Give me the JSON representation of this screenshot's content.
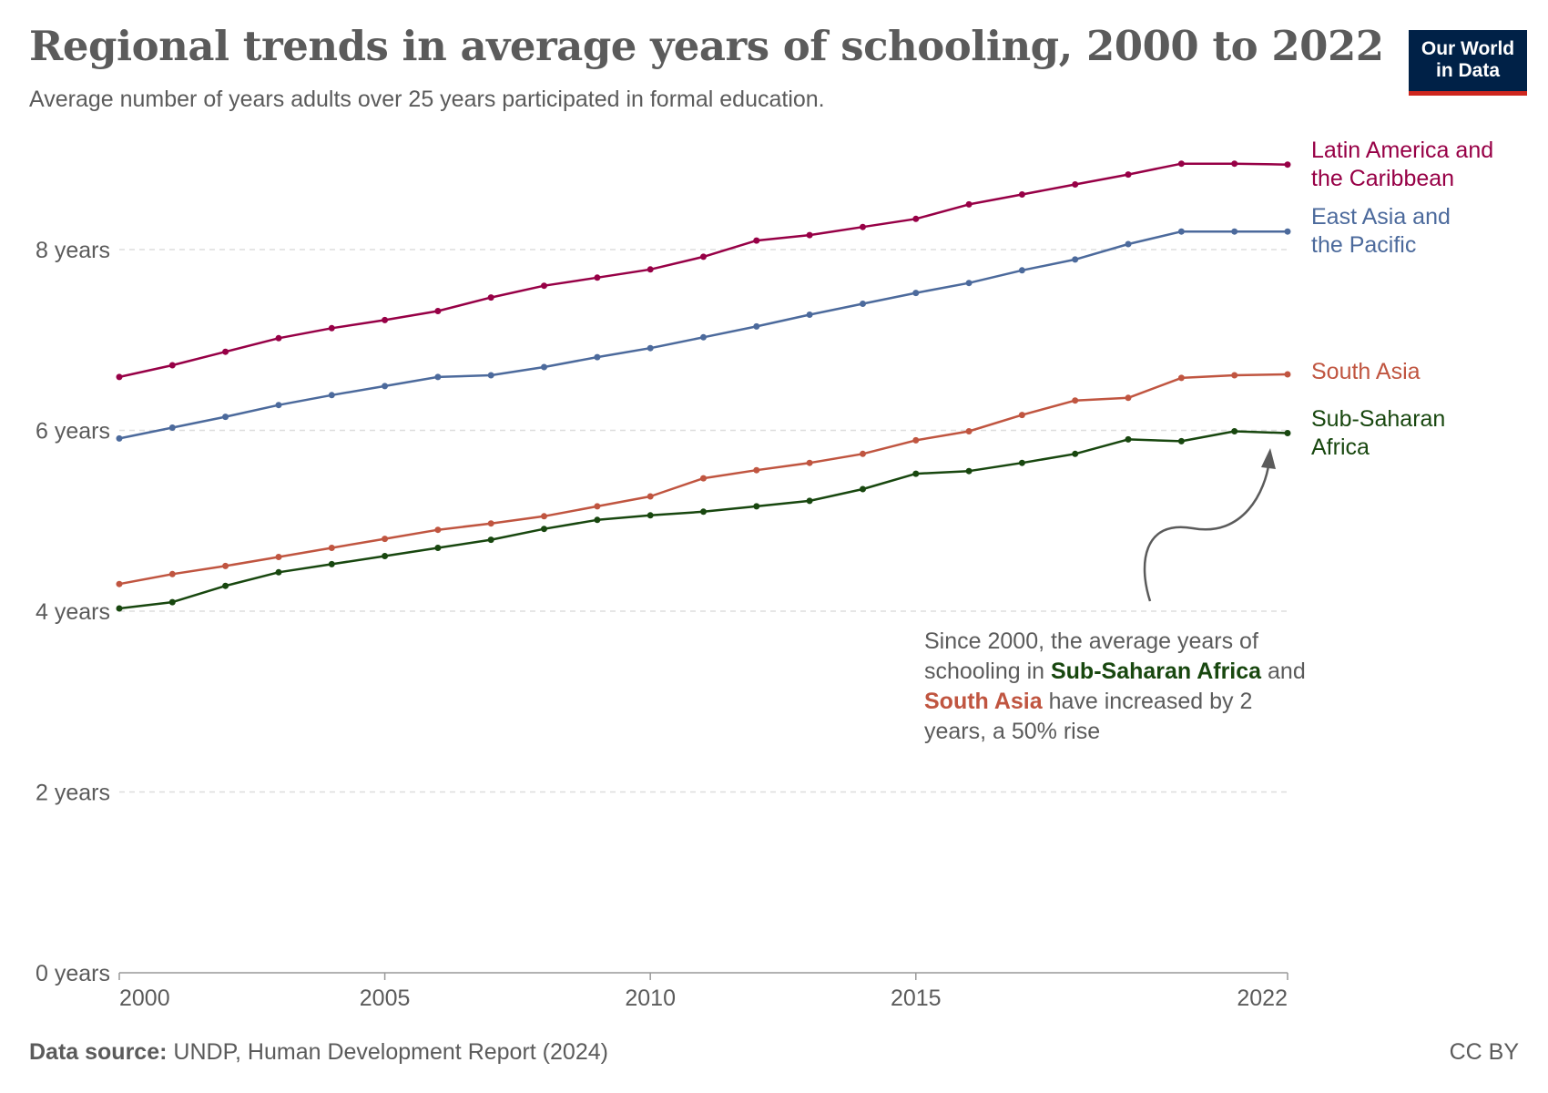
{
  "header": {
    "title": "Regional trends in average years of schooling, 2000 to 2022",
    "subtitle": "Average number of years adults over 25 years participated in formal education."
  },
  "logo": {
    "line1": "Our World",
    "line2": "in Data"
  },
  "footer": {
    "source_label": "Data source:",
    "source_text": "UNDP, Human Development Report (2024)",
    "license": "CC BY"
  },
  "annotation": {
    "part1": "Since 2000, the average years of schooling in ",
    "highlight1": "Sub-Saharan Africa",
    "part2": " and ",
    "highlight2": "South Asia",
    "part3": " have increased by 2 years, a 50% rise"
  },
  "colors": {
    "latin_america": "#970046",
    "east_asia": "#4c6a9c",
    "south_asia": "#c05540",
    "sub_saharan": "#18470f",
    "text": "#5b5b5b",
    "grid": "#dddddd",
    "brand": "#002147",
    "brand_accent": "#ce261e"
  },
  "chart_data": {
    "type": "line",
    "title": "Regional trends in average years of schooling, 2000 to 2022",
    "subtitle": "Average number of years adults over 25 years participated in formal education.",
    "xlabel": "",
    "ylabel": "",
    "xlim": [
      2000,
      2022
    ],
    "ylim": [
      0,
      9
    ],
    "yticks": [
      0,
      2,
      4,
      6,
      8
    ],
    "ytick_labels": [
      "0 years",
      "2 years",
      "4 years",
      "6 years",
      "8 years"
    ],
    "xticks": [
      2000,
      2005,
      2010,
      2015,
      2022
    ],
    "xtick_labels": [
      "2000",
      "2005",
      "2010",
      "2015",
      "2022"
    ],
    "grid": "horizontal dashed",
    "legend": "right, labels at line ends",
    "x": [
      2000,
      2001,
      2002,
      2003,
      2004,
      2005,
      2006,
      2007,
      2008,
      2009,
      2010,
      2011,
      2012,
      2013,
      2014,
      2015,
      2016,
      2017,
      2018,
      2019,
      2020,
      2021,
      2022
    ],
    "series": [
      {
        "name": "Latin America and the Caribbean",
        "label_lines": [
          "Latin America and",
          "the Caribbean"
        ],
        "color": "#970046",
        "values": [
          6.59,
          6.72,
          6.87,
          7.02,
          7.13,
          7.22,
          7.32,
          7.47,
          7.6,
          7.69,
          7.78,
          7.92,
          8.1,
          8.16,
          8.25,
          8.34,
          8.5,
          8.61,
          8.72,
          8.83,
          8.95,
          8.95,
          8.94
        ]
      },
      {
        "name": "East Asia and the Pacific",
        "label_lines": [
          "East Asia and",
          "the Pacific"
        ],
        "color": "#4c6a9c",
        "values": [
          5.91,
          6.03,
          6.15,
          6.28,
          6.39,
          6.49,
          6.59,
          6.61,
          6.7,
          6.81,
          6.91,
          7.03,
          7.15,
          7.28,
          7.4,
          7.52,
          7.63,
          7.77,
          7.89,
          8.06,
          8.2,
          8.2,
          8.2
        ]
      },
      {
        "name": "South Asia",
        "label_lines": [
          "South Asia"
        ],
        "color": "#c05540",
        "values": [
          4.3,
          4.41,
          4.5,
          4.6,
          4.7,
          4.8,
          4.9,
          4.97,
          5.05,
          5.16,
          5.27,
          5.47,
          5.56,
          5.64,
          5.74,
          5.89,
          5.99,
          6.17,
          6.33,
          6.36,
          6.58,
          6.61,
          6.62
        ]
      },
      {
        "name": "Sub-Saharan Africa",
        "label_lines": [
          "Sub-Saharan",
          "Africa"
        ],
        "color": "#18470f",
        "values": [
          4.03,
          4.1,
          4.28,
          4.43,
          4.52,
          4.61,
          4.7,
          4.79,
          4.91,
          5.01,
          5.06,
          5.1,
          5.16,
          5.22,
          5.35,
          5.52,
          5.55,
          5.64,
          5.74,
          5.9,
          5.88,
          5.99,
          5.97
        ]
      }
    ],
    "annotations": [
      "Since 2000, the average years of schooling in Sub-Saharan Africa and South Asia have increased by 2 years, a 50% rise"
    ]
  }
}
